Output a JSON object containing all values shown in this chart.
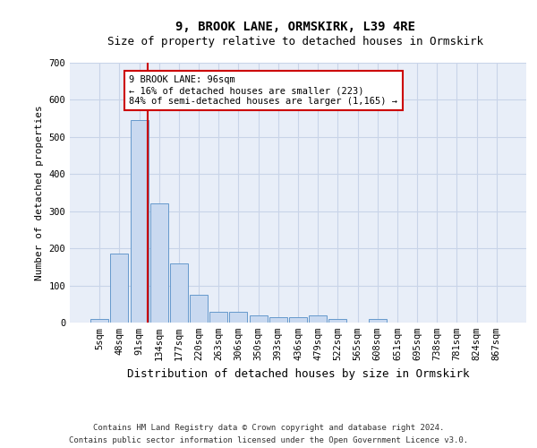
{
  "title1": "9, BROOK LANE, ORMSKIRK, L39 4RE",
  "title2": "Size of property relative to detached houses in Ormskirk",
  "xlabel": "Distribution of detached houses by size in Ormskirk",
  "ylabel": "Number of detached properties",
  "bin_labels": [
    "5sqm",
    "48sqm",
    "91sqm",
    "134sqm",
    "177sqm",
    "220sqm",
    "263sqm",
    "306sqm",
    "350sqm",
    "393sqm",
    "436sqm",
    "479sqm",
    "522sqm",
    "565sqm",
    "608sqm",
    "651sqm",
    "695sqm",
    "738sqm",
    "781sqm",
    "824sqm",
    "867sqm"
  ],
  "bar_heights": [
    10,
    185,
    545,
    320,
    160,
    75,
    30,
    30,
    20,
    15,
    15,
    20,
    10,
    0,
    10,
    0,
    0,
    0,
    0,
    0,
    0
  ],
  "bar_color": "#c9d9f0",
  "bar_edge_color": "#6699cc",
  "grid_color": "#c8d4e8",
  "background_color": "#e8eef8",
  "property_line_color": "#cc0000",
  "annotation_box_color": "#ffffff",
  "annotation_edge_color": "#cc0000",
  "annotation_text": "9 BROOK LANE: 96sqm\n← 16% of detached houses are smaller (223)\n84% of semi-detached houses are larger (1,165) →",
  "ylim": [
    0,
    700
  ],
  "yticks": [
    0,
    100,
    200,
    300,
    400,
    500,
    600,
    700
  ],
  "title1_fontsize": 10,
  "title2_fontsize": 9,
  "xlabel_fontsize": 9,
  "ylabel_fontsize": 8,
  "tick_fontsize": 7.5,
  "footnote1": "Contains HM Land Registry data © Crown copyright and database right 2024.",
  "footnote2": "Contains public sector information licensed under the Open Government Licence v3.0.",
  "footnote_fontsize": 6.5
}
